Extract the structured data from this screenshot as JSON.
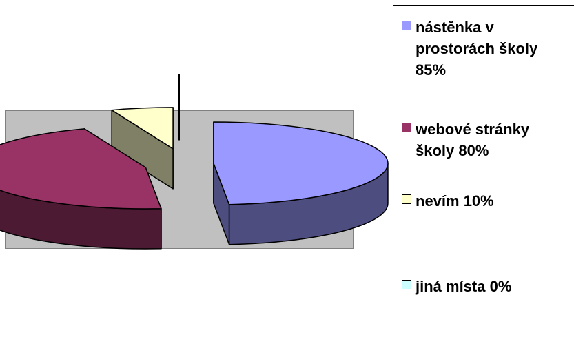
{
  "chart_data": {
    "type": "pie",
    "style": "3d-exploded",
    "title": "",
    "slices": [
      {
        "label": "nástěnka v prostorách školy 85%",
        "value": 85,
        "color": "#9999ff",
        "side": "#4d4d80"
      },
      {
        "label": "webové stránky školy 80%",
        "value": 80,
        "color": "#993366",
        "side": "#4d1a33"
      },
      {
        "label": "nevím 10%",
        "value": 10,
        "color": "#ffffcc",
        "side": "#808066"
      },
      {
        "label": "jiná místa 0%",
        "value": 0,
        "color": "#ccffff",
        "side": "#668080"
      }
    ],
    "legend_position": "right",
    "plot_background": "#c0c0c0"
  }
}
